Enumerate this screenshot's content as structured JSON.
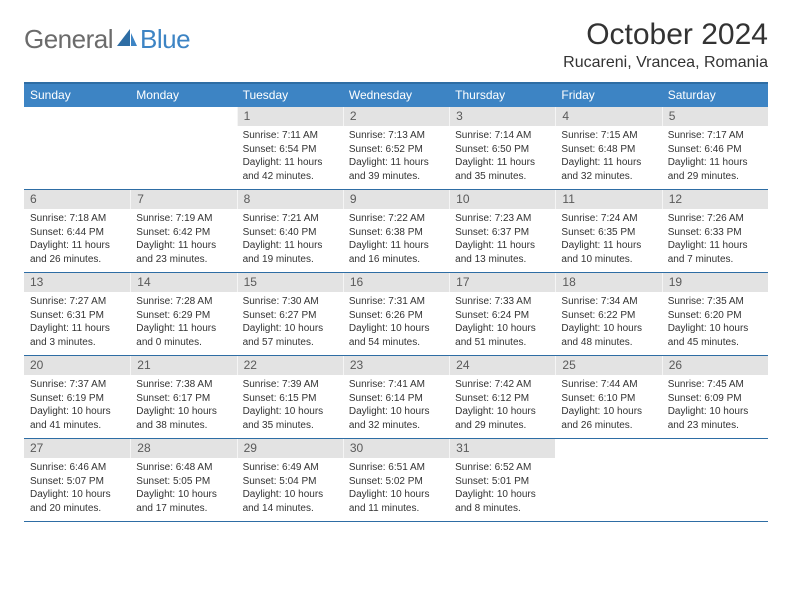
{
  "colors": {
    "header_bg": "#3d84c4",
    "header_text": "#ffffff",
    "rule": "#2e6da4",
    "date_bar_bg": "#e3e3e3",
    "date_bar_text": "#5a5a5a",
    "body_text": "#333333",
    "logo_gray": "#6b6b6b",
    "logo_blue": "#3d84c4"
  },
  "logo": {
    "part1": "General",
    "part2": "Blue"
  },
  "title": "October 2024",
  "location": "Rucareni, Vrancea, Romania",
  "day_names": [
    "Sunday",
    "Monday",
    "Tuesday",
    "Wednesday",
    "Thursday",
    "Friday",
    "Saturday"
  ],
  "weeks": [
    [
      {
        "date": "",
        "sunrise": "",
        "sunset": "",
        "daylight": ""
      },
      {
        "date": "",
        "sunrise": "",
        "sunset": "",
        "daylight": ""
      },
      {
        "date": "1",
        "sunrise": "Sunrise: 7:11 AM",
        "sunset": "Sunset: 6:54 PM",
        "daylight": "Daylight: 11 hours and 42 minutes."
      },
      {
        "date": "2",
        "sunrise": "Sunrise: 7:13 AM",
        "sunset": "Sunset: 6:52 PM",
        "daylight": "Daylight: 11 hours and 39 minutes."
      },
      {
        "date": "3",
        "sunrise": "Sunrise: 7:14 AM",
        "sunset": "Sunset: 6:50 PM",
        "daylight": "Daylight: 11 hours and 35 minutes."
      },
      {
        "date": "4",
        "sunrise": "Sunrise: 7:15 AM",
        "sunset": "Sunset: 6:48 PM",
        "daylight": "Daylight: 11 hours and 32 minutes."
      },
      {
        "date": "5",
        "sunrise": "Sunrise: 7:17 AM",
        "sunset": "Sunset: 6:46 PM",
        "daylight": "Daylight: 11 hours and 29 minutes."
      }
    ],
    [
      {
        "date": "6",
        "sunrise": "Sunrise: 7:18 AM",
        "sunset": "Sunset: 6:44 PM",
        "daylight": "Daylight: 11 hours and 26 minutes."
      },
      {
        "date": "7",
        "sunrise": "Sunrise: 7:19 AM",
        "sunset": "Sunset: 6:42 PM",
        "daylight": "Daylight: 11 hours and 23 minutes."
      },
      {
        "date": "8",
        "sunrise": "Sunrise: 7:21 AM",
        "sunset": "Sunset: 6:40 PM",
        "daylight": "Daylight: 11 hours and 19 minutes."
      },
      {
        "date": "9",
        "sunrise": "Sunrise: 7:22 AM",
        "sunset": "Sunset: 6:38 PM",
        "daylight": "Daylight: 11 hours and 16 minutes."
      },
      {
        "date": "10",
        "sunrise": "Sunrise: 7:23 AM",
        "sunset": "Sunset: 6:37 PM",
        "daylight": "Daylight: 11 hours and 13 minutes."
      },
      {
        "date": "11",
        "sunrise": "Sunrise: 7:24 AM",
        "sunset": "Sunset: 6:35 PM",
        "daylight": "Daylight: 11 hours and 10 minutes."
      },
      {
        "date": "12",
        "sunrise": "Sunrise: 7:26 AM",
        "sunset": "Sunset: 6:33 PM",
        "daylight": "Daylight: 11 hours and 7 minutes."
      }
    ],
    [
      {
        "date": "13",
        "sunrise": "Sunrise: 7:27 AM",
        "sunset": "Sunset: 6:31 PM",
        "daylight": "Daylight: 11 hours and 3 minutes."
      },
      {
        "date": "14",
        "sunrise": "Sunrise: 7:28 AM",
        "sunset": "Sunset: 6:29 PM",
        "daylight": "Daylight: 11 hours and 0 minutes."
      },
      {
        "date": "15",
        "sunrise": "Sunrise: 7:30 AM",
        "sunset": "Sunset: 6:27 PM",
        "daylight": "Daylight: 10 hours and 57 minutes."
      },
      {
        "date": "16",
        "sunrise": "Sunrise: 7:31 AM",
        "sunset": "Sunset: 6:26 PM",
        "daylight": "Daylight: 10 hours and 54 minutes."
      },
      {
        "date": "17",
        "sunrise": "Sunrise: 7:33 AM",
        "sunset": "Sunset: 6:24 PM",
        "daylight": "Daylight: 10 hours and 51 minutes."
      },
      {
        "date": "18",
        "sunrise": "Sunrise: 7:34 AM",
        "sunset": "Sunset: 6:22 PM",
        "daylight": "Daylight: 10 hours and 48 minutes."
      },
      {
        "date": "19",
        "sunrise": "Sunrise: 7:35 AM",
        "sunset": "Sunset: 6:20 PM",
        "daylight": "Daylight: 10 hours and 45 minutes."
      }
    ],
    [
      {
        "date": "20",
        "sunrise": "Sunrise: 7:37 AM",
        "sunset": "Sunset: 6:19 PM",
        "daylight": "Daylight: 10 hours and 41 minutes."
      },
      {
        "date": "21",
        "sunrise": "Sunrise: 7:38 AM",
        "sunset": "Sunset: 6:17 PM",
        "daylight": "Daylight: 10 hours and 38 minutes."
      },
      {
        "date": "22",
        "sunrise": "Sunrise: 7:39 AM",
        "sunset": "Sunset: 6:15 PM",
        "daylight": "Daylight: 10 hours and 35 minutes."
      },
      {
        "date": "23",
        "sunrise": "Sunrise: 7:41 AM",
        "sunset": "Sunset: 6:14 PM",
        "daylight": "Daylight: 10 hours and 32 minutes."
      },
      {
        "date": "24",
        "sunrise": "Sunrise: 7:42 AM",
        "sunset": "Sunset: 6:12 PM",
        "daylight": "Daylight: 10 hours and 29 minutes."
      },
      {
        "date": "25",
        "sunrise": "Sunrise: 7:44 AM",
        "sunset": "Sunset: 6:10 PM",
        "daylight": "Daylight: 10 hours and 26 minutes."
      },
      {
        "date": "26",
        "sunrise": "Sunrise: 7:45 AM",
        "sunset": "Sunset: 6:09 PM",
        "daylight": "Daylight: 10 hours and 23 minutes."
      }
    ],
    [
      {
        "date": "27",
        "sunrise": "Sunrise: 6:46 AM",
        "sunset": "Sunset: 5:07 PM",
        "daylight": "Daylight: 10 hours and 20 minutes."
      },
      {
        "date": "28",
        "sunrise": "Sunrise: 6:48 AM",
        "sunset": "Sunset: 5:05 PM",
        "daylight": "Daylight: 10 hours and 17 minutes."
      },
      {
        "date": "29",
        "sunrise": "Sunrise: 6:49 AM",
        "sunset": "Sunset: 5:04 PM",
        "daylight": "Daylight: 10 hours and 14 minutes."
      },
      {
        "date": "30",
        "sunrise": "Sunrise: 6:51 AM",
        "sunset": "Sunset: 5:02 PM",
        "daylight": "Daylight: 10 hours and 11 minutes."
      },
      {
        "date": "31",
        "sunrise": "Sunrise: 6:52 AM",
        "sunset": "Sunset: 5:01 PM",
        "daylight": "Daylight: 10 hours and 8 minutes."
      },
      {
        "date": "",
        "sunrise": "",
        "sunset": "",
        "daylight": ""
      },
      {
        "date": "",
        "sunrise": "",
        "sunset": "",
        "daylight": ""
      }
    ]
  ]
}
